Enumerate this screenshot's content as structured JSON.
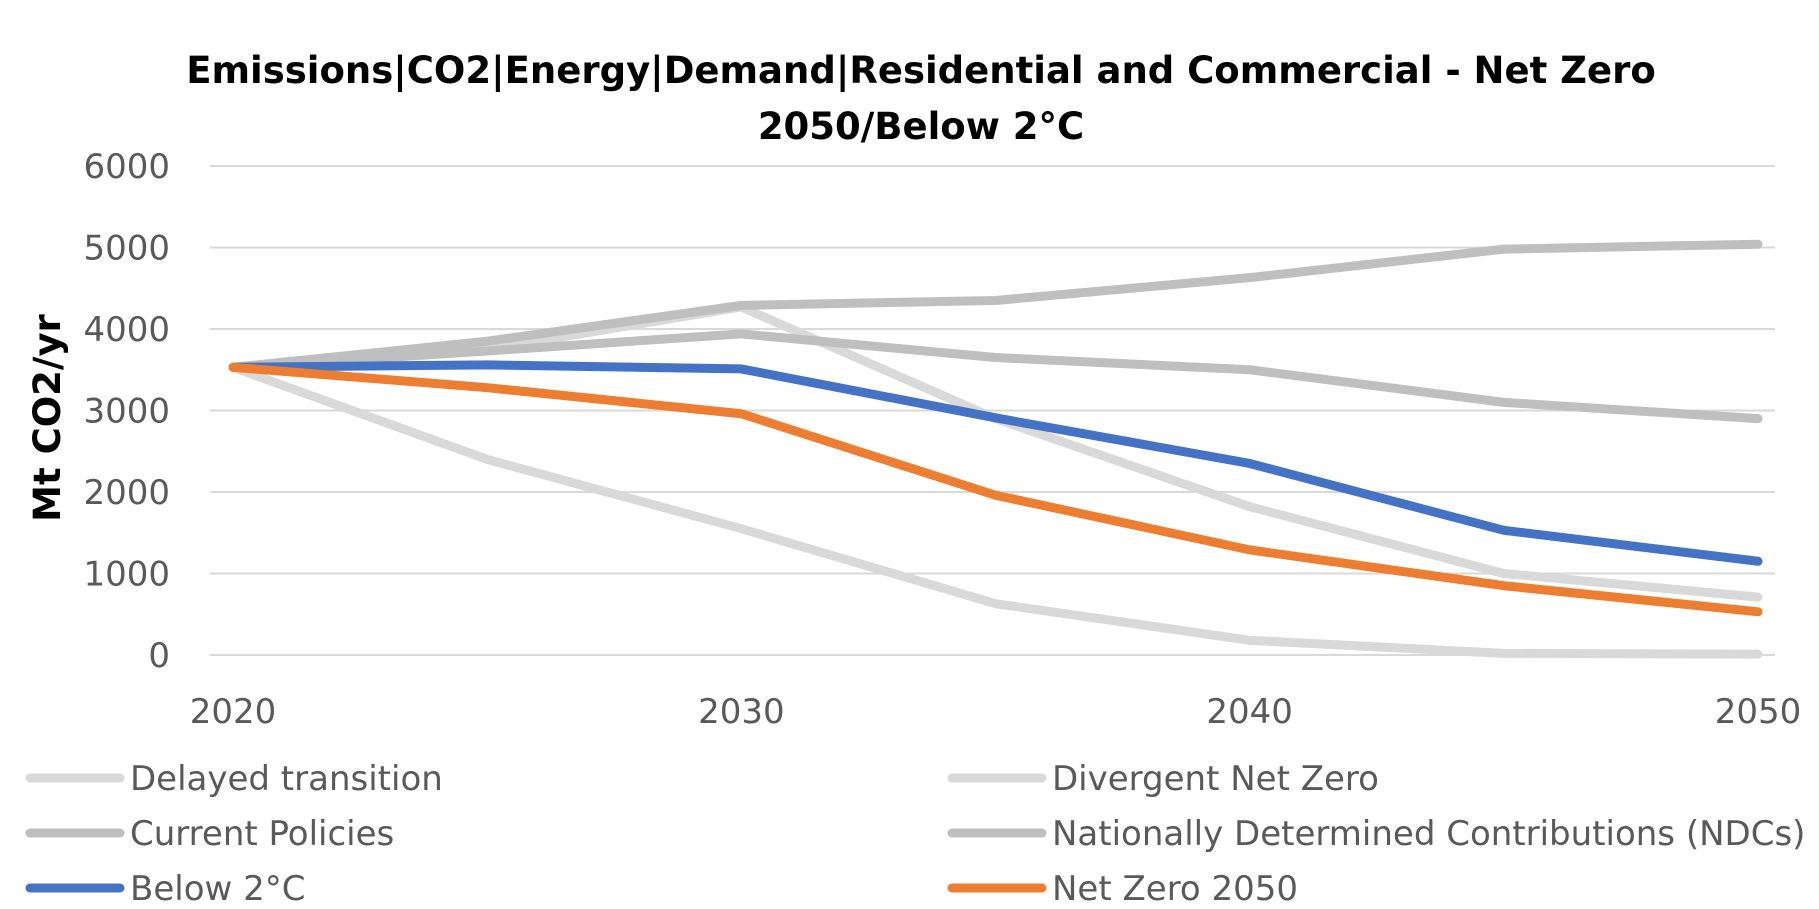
{
  "chart_data": {
    "type": "line",
    "title_line1": "Emissions|CO2|Energy|Demand|Residential and Commercial - Net Zero",
    "title_line2": "2050/Below 2°C",
    "xlabel": "",
    "ylabel": "Mt CO2/yr",
    "x": [
      2020,
      2025,
      2030,
      2035,
      2040,
      2045,
      2050
    ],
    "x_ticks": [
      "2020",
      "2030",
      "2040",
      "2050"
    ],
    "y_ticks": [
      "0",
      "1000",
      "2000",
      "3000",
      "4000",
      "5000",
      "6000"
    ],
    "ylim": [
      0,
      6000
    ],
    "xlim": [
      2020,
      2050
    ],
    "grid": "horizontal",
    "legend_position": "bottom",
    "series": [
      {
        "name": "Delayed transition",
        "color": "#d9d9d9",
        "values": [
          3530,
          2400,
          1550,
          630,
          180,
          20,
          10
        ]
      },
      {
        "name": "Divergent Net Zero",
        "color": "#d9d9d9",
        "values": [
          3530,
          3750,
          4270,
          2900,
          1820,
          1000,
          710
        ]
      },
      {
        "name": "Current Policies",
        "color": "#bfbfbf",
        "values": [
          3530,
          3850,
          4290,
          4350,
          4630,
          4980,
          5040
        ]
      },
      {
        "name": "Nationally Determined Contributions (NDCs)",
        "color": "#bfbfbf",
        "values": [
          3530,
          3730,
          3940,
          3650,
          3500,
          3100,
          2900
        ]
      },
      {
        "name": "Below 2°C",
        "color": "#4472c4",
        "values": [
          3530,
          3560,
          3510,
          2910,
          2350,
          1530,
          1150
        ]
      },
      {
        "name": "Net Zero 2050",
        "color": "#ed7d31",
        "values": [
          3530,
          3280,
          2960,
          1960,
          1290,
          850,
          530
        ]
      }
    ]
  }
}
